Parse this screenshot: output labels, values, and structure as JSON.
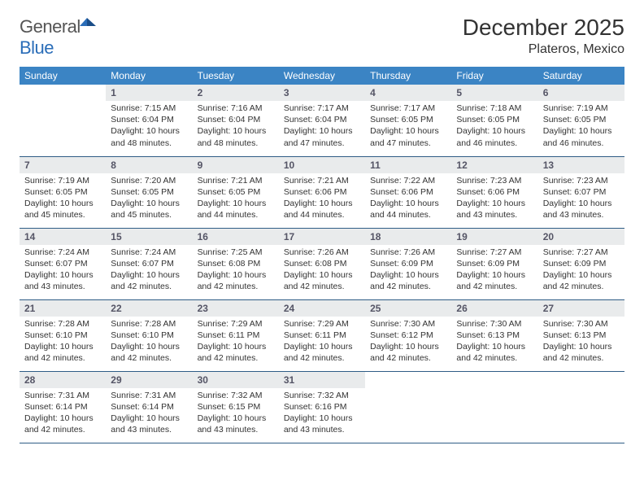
{
  "brand": {
    "part1": "General",
    "part2": "Blue"
  },
  "title": "December 2025",
  "location": "Plateros, Mexico",
  "colors": {
    "header_bg": "#3b84c4",
    "header_fg": "#ffffff",
    "daynum_bg": "#e9ebec",
    "rule": "#2f5d86",
    "brand_blue": "#2a6db8"
  },
  "weekdays": [
    "Sunday",
    "Monday",
    "Tuesday",
    "Wednesday",
    "Thursday",
    "Friday",
    "Saturday"
  ],
  "weeks": [
    [
      null,
      {
        "n": "1",
        "sr": "7:15 AM",
        "ss": "6:04 PM",
        "dl": "10 hours and 48 minutes."
      },
      {
        "n": "2",
        "sr": "7:16 AM",
        "ss": "6:04 PM",
        "dl": "10 hours and 48 minutes."
      },
      {
        "n": "3",
        "sr": "7:17 AM",
        "ss": "6:04 PM",
        "dl": "10 hours and 47 minutes."
      },
      {
        "n": "4",
        "sr": "7:17 AM",
        "ss": "6:05 PM",
        "dl": "10 hours and 47 minutes."
      },
      {
        "n": "5",
        "sr": "7:18 AM",
        "ss": "6:05 PM",
        "dl": "10 hours and 46 minutes."
      },
      {
        "n": "6",
        "sr": "7:19 AM",
        "ss": "6:05 PM",
        "dl": "10 hours and 46 minutes."
      }
    ],
    [
      {
        "n": "7",
        "sr": "7:19 AM",
        "ss": "6:05 PM",
        "dl": "10 hours and 45 minutes."
      },
      {
        "n": "8",
        "sr": "7:20 AM",
        "ss": "6:05 PM",
        "dl": "10 hours and 45 minutes."
      },
      {
        "n": "9",
        "sr": "7:21 AM",
        "ss": "6:05 PM",
        "dl": "10 hours and 44 minutes."
      },
      {
        "n": "10",
        "sr": "7:21 AM",
        "ss": "6:06 PM",
        "dl": "10 hours and 44 minutes."
      },
      {
        "n": "11",
        "sr": "7:22 AM",
        "ss": "6:06 PM",
        "dl": "10 hours and 44 minutes."
      },
      {
        "n": "12",
        "sr": "7:23 AM",
        "ss": "6:06 PM",
        "dl": "10 hours and 43 minutes."
      },
      {
        "n": "13",
        "sr": "7:23 AM",
        "ss": "6:07 PM",
        "dl": "10 hours and 43 minutes."
      }
    ],
    [
      {
        "n": "14",
        "sr": "7:24 AM",
        "ss": "6:07 PM",
        "dl": "10 hours and 43 minutes."
      },
      {
        "n": "15",
        "sr": "7:24 AM",
        "ss": "6:07 PM",
        "dl": "10 hours and 42 minutes."
      },
      {
        "n": "16",
        "sr": "7:25 AM",
        "ss": "6:08 PM",
        "dl": "10 hours and 42 minutes."
      },
      {
        "n": "17",
        "sr": "7:26 AM",
        "ss": "6:08 PM",
        "dl": "10 hours and 42 minutes."
      },
      {
        "n": "18",
        "sr": "7:26 AM",
        "ss": "6:09 PM",
        "dl": "10 hours and 42 minutes."
      },
      {
        "n": "19",
        "sr": "7:27 AM",
        "ss": "6:09 PM",
        "dl": "10 hours and 42 minutes."
      },
      {
        "n": "20",
        "sr": "7:27 AM",
        "ss": "6:09 PM",
        "dl": "10 hours and 42 minutes."
      }
    ],
    [
      {
        "n": "21",
        "sr": "7:28 AM",
        "ss": "6:10 PM",
        "dl": "10 hours and 42 minutes."
      },
      {
        "n": "22",
        "sr": "7:28 AM",
        "ss": "6:10 PM",
        "dl": "10 hours and 42 minutes."
      },
      {
        "n": "23",
        "sr": "7:29 AM",
        "ss": "6:11 PM",
        "dl": "10 hours and 42 minutes."
      },
      {
        "n": "24",
        "sr": "7:29 AM",
        "ss": "6:11 PM",
        "dl": "10 hours and 42 minutes."
      },
      {
        "n": "25",
        "sr": "7:30 AM",
        "ss": "6:12 PM",
        "dl": "10 hours and 42 minutes."
      },
      {
        "n": "26",
        "sr": "7:30 AM",
        "ss": "6:13 PM",
        "dl": "10 hours and 42 minutes."
      },
      {
        "n": "27",
        "sr": "7:30 AM",
        "ss": "6:13 PM",
        "dl": "10 hours and 42 minutes."
      }
    ],
    [
      {
        "n": "28",
        "sr": "7:31 AM",
        "ss": "6:14 PM",
        "dl": "10 hours and 42 minutes."
      },
      {
        "n": "29",
        "sr": "7:31 AM",
        "ss": "6:14 PM",
        "dl": "10 hours and 43 minutes."
      },
      {
        "n": "30",
        "sr": "7:32 AM",
        "ss": "6:15 PM",
        "dl": "10 hours and 43 minutes."
      },
      {
        "n": "31",
        "sr": "7:32 AM",
        "ss": "6:16 PM",
        "dl": "10 hours and 43 minutes."
      },
      null,
      null,
      null
    ]
  ],
  "labels": {
    "sunrise": "Sunrise: ",
    "sunset": "Sunset: ",
    "daylight": "Daylight: "
  }
}
